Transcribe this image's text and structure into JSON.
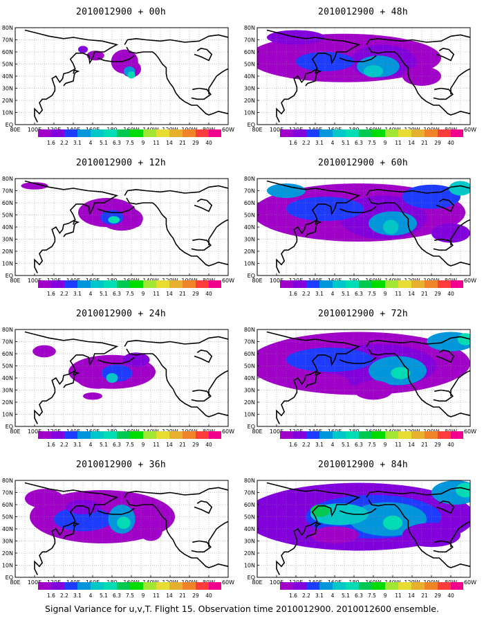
{
  "panels": [
    {
      "title": "2010012900 + 00h",
      "lead_hours": 0
    },
    {
      "title": "2010012900 + 48h",
      "lead_hours": 48
    },
    {
      "title": "2010012900 + 12h",
      "lead_hours": 12
    },
    {
      "title": "2010012900 + 60h",
      "lead_hours": 60
    },
    {
      "title": "2010012900 + 24h",
      "lead_hours": 24
    },
    {
      "title": "2010012900 + 72h",
      "lead_hours": 72
    },
    {
      "title": "2010012900 + 36h",
      "lead_hours": 36
    },
    {
      "title": "2010012900 + 84h",
      "lead_hours": 84
    }
  ],
  "map": {
    "lon_labels": [
      "80E",
      "100E",
      "120E",
      "140E",
      "160E",
      "180",
      "160W",
      "140W",
      "120W",
      "100W",
      "80W",
      "60W"
    ],
    "lat_labels": [
      "80N",
      "70N",
      "60N",
      "50N",
      "40N",
      "30N",
      "20N",
      "10N",
      "EQ"
    ]
  },
  "colorbar": {
    "levels": [
      "1.6",
      "2.2",
      "3.1",
      "4",
      "5.1",
      "6.3",
      "7.5",
      "9",
      "11",
      "14",
      "21",
      "29",
      "40"
    ],
    "colors": [
      "#a000c8",
      "#8200dc",
      "#1e3cff",
      "#0096dc",
      "#00c8c8",
      "#00dcb4",
      "#00c850",
      "#00dc00",
      "#a0e632",
      "#e6dc32",
      "#e6af2d",
      "#f08228",
      "#fa3c3c",
      "#f0008c"
    ]
  },
  "footer": "Signal Variance for u,v,T. Flight 15. Observation time 2010012900. 2010012600 ensemble."
}
